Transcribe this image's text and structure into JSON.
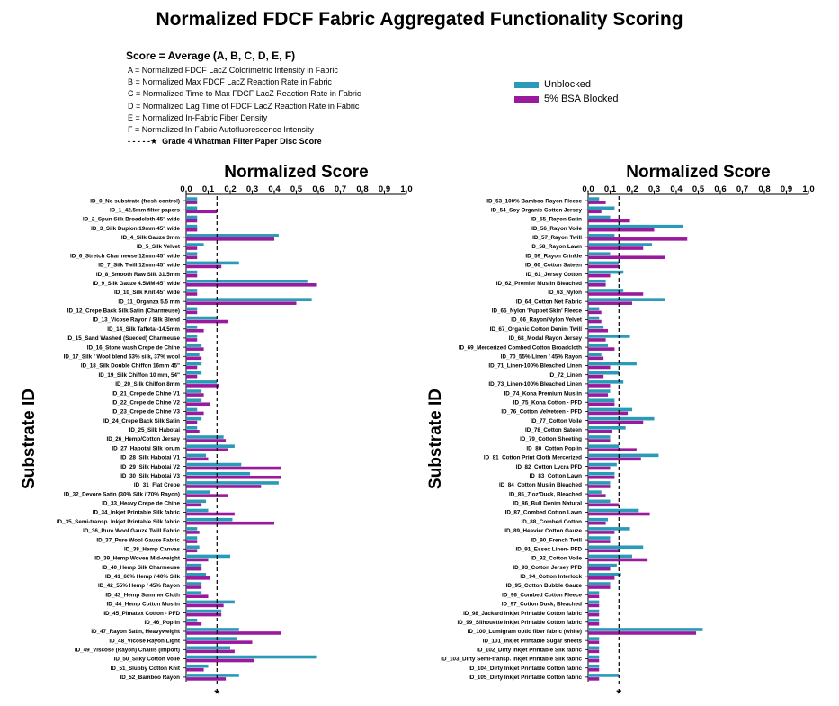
{
  "title": "Normalized FDCF Fabric Aggregated Functionality Scoring",
  "formula": "Score = Average (A, B, C, D, E, F)",
  "definitions": [
    "A = Normalized FDCF LacZ Colorimetric Intensity in Fabric",
    "B = Normalized Max FDCF LacZ Reaction Rate in Fabric",
    "C = Normalized Time to Max FDCF LacZ Reaction Rate in Fabric",
    "D = Normalized Lag Time of FDCF LacZ Reaction Rate in Fabric",
    "E = Normalized In-Fabric Fiber Density",
    "F = Normalized In-Fabric Autofluorescence Intensity"
  ],
  "reference_line_label": "Grade 4 Whatman Filter Paper Disc Score",
  "reference_marker": "- - - - -★",
  "colors": {
    "unblocked": "#2a9ab8",
    "bsa_blocked": "#9a1a9e",
    "reference_line": "#000000"
  },
  "chart_data": [
    {
      "type": "bar",
      "orientation": "horizontal",
      "xlabel": "Normalized Score",
      "ylabel": "Substrate ID",
      "xlim": [
        0,
        1.0
      ],
      "xticks": [
        "0.0",
        "0.1",
        "0.2",
        "0.3",
        "0.4",
        "0.5",
        "0.6",
        "0.7",
        "0.8",
        "0.9",
        "1.0"
      ],
      "reference_x": 0.14,
      "reference_marker": "*",
      "categories": [
        "ID_0_No substrate (fresh control)",
        "ID_1_42.5mm filter papers",
        "ID_2_Spun Silk Broadcloth 45\" wide",
        "ID_3_Silk Dupion 19mm 45\" wide",
        "ID_4_Silk Gauze 3mm",
        "ID_5_Silk Velvet",
        "ID_6_Stretch Charmeuse 12mm 45\" wide",
        "ID_7_Silk Twill 12mm 45\" wide",
        "ID_8_Smooth Raw Silk 31.5mm",
        "ID_9_Silk Gauze 4.5MM 45\" wide",
        "ID_10_Silk Knit 45\" wide",
        "ID_11_Organza 5.5 mm",
        "ID_12_Crepe Back Silk Satin (Charmeuse)",
        "ID_13_Vicose Rayon / Silk Blend",
        "ID_14_Silk Taffeta -14.5mm",
        "ID_15_Sand Washed (Sueded) Charmeuse",
        "ID_16_Stone wash Crepe de Chine",
        "ID_17_Silk / Wool blend 63% silk, 37% wool",
        "ID_18_Silk Double Chiffon 16mm 45\"",
        "ID_19_Silk Chiffon 10 mm, 54\"",
        "ID_20_Silk Chiffon 8mm",
        "ID_21_Crepe de Chine V1",
        "ID_22_Crepe de Chine V2",
        "ID_23_Crepe de Chine V3",
        "ID_24_Crepe Back Silk Satin",
        "ID_25_Silk Habotai",
        "ID_26_Hemp/Cotton Jersey",
        "ID_27_Habotai Silk lorum",
        "ID_28_Silk Habotai V1",
        "ID_29_Silk Habotai V2",
        "ID_30_Silk Habotai V3",
        "ID_31_Flat Crepe",
        "ID_32_Devore Satin (30% Silk / 70% Rayon)",
        "ID_33_Heavy Crepe de Chine",
        "ID_34_Inkjet Printable Silk fabric",
        "ID_35_Semi-transp. Inkjet Printable Silk fabric",
        "ID_36_Pure Wool Gauze Twill Fabric",
        "ID_37_Pure Wool Gauze Fabric",
        "ID_38_Hemp Canvas",
        "ID_39_Hemp Woven Mid-weight",
        "ID_40_Hemp Silk Charmeuse",
        "ID_41_60% Hemp / 40% Silk",
        "ID_42_55% Hemp / 45% Rayon",
        "ID_43_Hemp Summer Cloth",
        "ID_44_Hemp Cotton Muslin",
        "ID_45_Pimatex Cotton - PFD",
        "ID_46_Poplin",
        "ID_47_Rayon Satin, Heavyweight",
        "ID_48_Vicose Rayon Light",
        "ID_49_Viscose (Rayon) Challis (Import)",
        "ID_50_Silky Cotton Voile",
        "ID_51_Slubby Cotton Knit",
        "ID_52_Bamboo Rayon"
      ],
      "series": [
        {
          "name": "Unblocked",
          "values": [
            0.05,
            0.05,
            0.05,
            0.05,
            0.42,
            0.08,
            0.05,
            0.24,
            0.05,
            0.55,
            0.05,
            0.57,
            0.05,
            0.14,
            0.05,
            0.05,
            0.07,
            0.06,
            0.07,
            0.07,
            0.14,
            0.07,
            0.07,
            0.05,
            0.07,
            0.05,
            0.17,
            0.22,
            0.09,
            0.25,
            0.29,
            0.42,
            0.11,
            0.09,
            0.1,
            0.21,
            0.05,
            0.05,
            0.06,
            0.2,
            0.07,
            0.09,
            0.07,
            0.07,
            0.22,
            0.16,
            0.05,
            0.24,
            0.23,
            0.2,
            0.59,
            0.1,
            0.24
          ]
        },
        {
          "name": "5% BSA Blocked",
          "values": [
            0.05,
            0.14,
            0.05,
            0.05,
            0.4,
            0.05,
            0.05,
            0.16,
            0.05,
            0.59,
            0.05,
            0.5,
            0.05,
            0.19,
            0.08,
            0.05,
            0.08,
            0.07,
            0.05,
            0.05,
            0.15,
            0.08,
            0.11,
            0.08,
            0.05,
            0.06,
            0.18,
            0.19,
            0.1,
            0.43,
            0.43,
            0.34,
            0.19,
            0.07,
            0.22,
            0.4,
            0.06,
            0.05,
            0.05,
            0.1,
            0.07,
            0.11,
            0.07,
            0.1,
            0.17,
            0.16,
            0.07,
            0.43,
            0.3,
            0.22,
            0.31,
            0.08,
            0.18
          ]
        }
      ]
    },
    {
      "type": "bar",
      "orientation": "horizontal",
      "xlabel": "Normalized Score",
      "ylabel": "Substrate ID",
      "xlim": [
        0,
        1.0
      ],
      "xticks": [
        "0.0",
        "0.1",
        "0.2",
        "0.3",
        "0.4",
        "0.5",
        "0.6",
        "0.7",
        "0.8",
        "0.9",
        "1.0"
      ],
      "reference_x": 0.14,
      "reference_marker": "*",
      "categories": [
        "ID_53_100% Bamboo Rayon Fleece",
        "ID_54_Soy Organic Cotton Jersey",
        "ID_55_Rayon Satin",
        "ID_56_Rayon Voile",
        "ID_57_Rayon Twill",
        "ID_58_Rayon Lawn",
        "ID_59_Rayon Crinkle",
        "ID_60_Cotton Sateen",
        "ID_61_Jersey Cotton",
        "ID_62_Premier Muslin Bleached",
        "ID_63_Nylon",
        "ID_64_Cotton Net Fabric",
        "ID_65_Nylon 'Puppet Skin' Fleece",
        "ID_66_Rayon/Nylon Velvet",
        "ID_67_Organic Cotton Denim Twill",
        "ID_68_Modal Rayon Jersey",
        "ID_69_Mercerized Combed Cotton Broadcloth",
        "ID_70_55% Linen / 45% Rayon",
        "ID_71_Linen-100% Bleached Linen",
        "ID_72_Linen",
        "ID_73_Linen-100% Bleached Linen",
        "ID_74_Kona Premium Muslin",
        "ID_75_Kona Cotton - PFD",
        "ID_76_Cotton Velveteen - PFD",
        "ID_77_Cotton Voile",
        "ID_78_Cotton Sateen",
        "ID_79_Cotton Sheeting",
        "ID_80_Cotton Poplin",
        "ID_81_Cotton Print Cloth Mercerized",
        "ID_82_Cotton Lycra PFD",
        "ID_83_Cotton Lawn",
        "ID_84_Cotton Muslin Bleached",
        "ID_85_7 oz'Duck, Bleached",
        "ID_86_Bull Denim Natural",
        "ID_87_Combed Cotton Lawn",
        "ID_88_Combed Cotton",
        "ID_89_Heavier Cotton Gauze",
        "ID_90_French Twill",
        "ID_91_Essex Linen- PFD",
        "ID_92_Cotton Voile",
        "ID_93_Cotton Jersey PFD",
        "ID_94_Cotton Interlock",
        "ID_95_Cotton Bubble Gauze",
        "ID_96_Combed Cotton Fleece",
        "ID_97_Cotton Duck, Bleached",
        "ID_98_Jackard Inkjet Printable Cotton fabric",
        "ID_99_Silhouette Inkjet Printable Cotton fabric",
        "ID_100_Lumigram optic fiber fabric (white)",
        "ID_101_Inkjet Printable Sugar sheets",
        "ID_102_Dirty Inkjet Printable Silk fabric",
        "ID_103_Dirty Semi-transp. Inkjet Printable Silk fabric",
        "ID_104_Dirty Inkjet Printable Cotton fabric",
        "ID_105_Dirty Inkjet Printable Cotton fabric"
      ],
      "series": [
        {
          "name": "Unblocked",
          "values": [
            0.05,
            0.12,
            0.1,
            0.43,
            0.12,
            0.29,
            0.1,
            0.14,
            0.16,
            0.08,
            0.16,
            0.35,
            0.05,
            0.05,
            0.07,
            0.19,
            0.09,
            0.06,
            0.22,
            0.14,
            0.16,
            0.1,
            0.12,
            0.2,
            0.3,
            0.17,
            0.1,
            0.14,
            0.32,
            0.13,
            0.12,
            0.1,
            0.06,
            0.1,
            0.23,
            0.09,
            0.19,
            0.1,
            0.25,
            0.2,
            0.13,
            0.15,
            0.1,
            0.05,
            0.05,
            0.05,
            0.05,
            0.52,
            0.05,
            0.05,
            0.05,
            0.05,
            0.14
          ]
        },
        {
          "name": "5% BSA Blocked",
          "values": [
            0.08,
            0.06,
            0.19,
            0.3,
            0.45,
            0.25,
            0.35,
            0.14,
            0.1,
            0.08,
            0.25,
            0.2,
            0.06,
            0.06,
            0.09,
            0.08,
            0.12,
            0.07,
            0.1,
            0.07,
            0.1,
            0.09,
            0.12,
            0.18,
            0.25,
            0.11,
            0.1,
            0.22,
            0.24,
            0.1,
            0.12,
            0.1,
            0.08,
            0.14,
            0.28,
            0.08,
            0.12,
            0.1,
            0.14,
            0.27,
            0.1,
            0.12,
            0.1,
            0.05,
            0.05,
            0.05,
            0.05,
            0.49,
            0.05,
            0.05,
            0.05,
            0.05,
            0.05
          ]
        }
      ]
    }
  ]
}
